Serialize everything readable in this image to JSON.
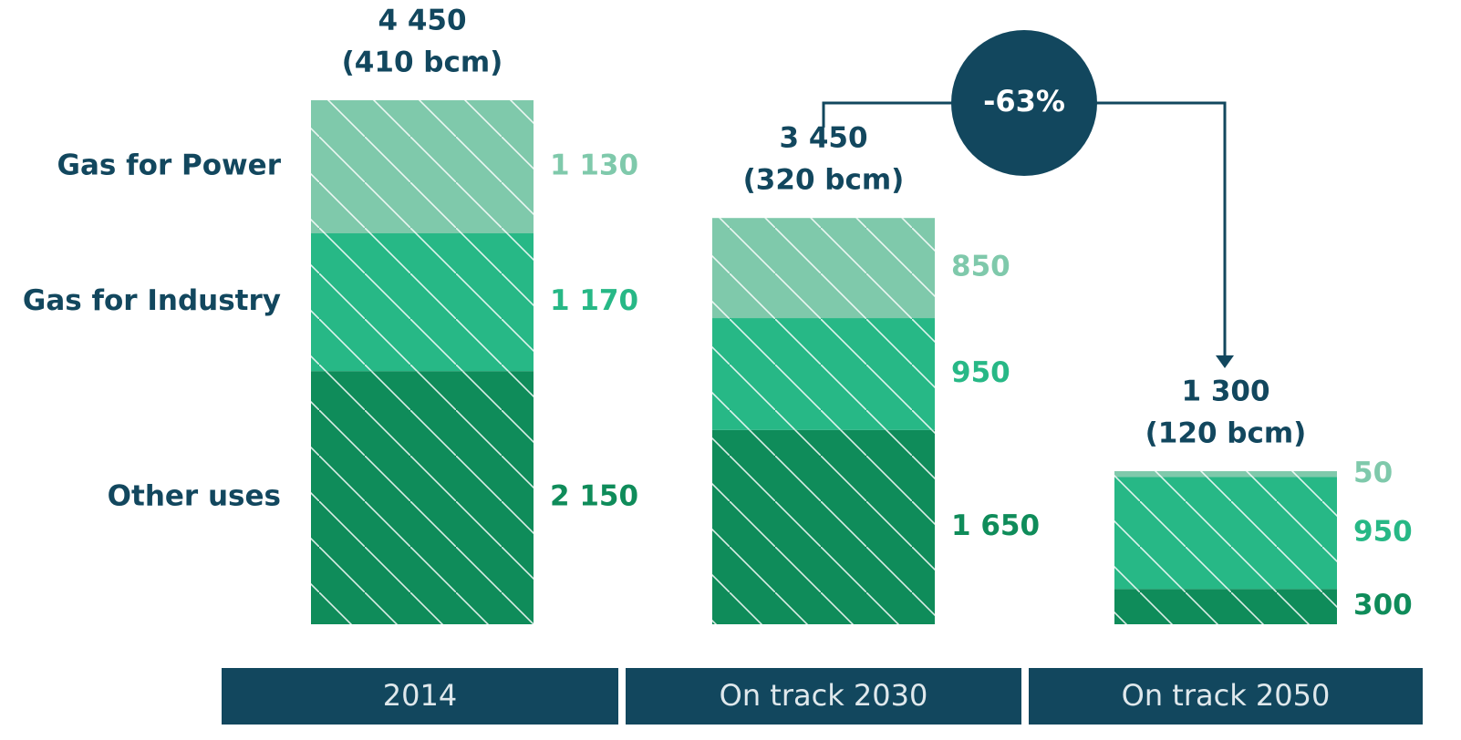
{
  "chart_data": {
    "type": "stacked_bar",
    "categories": [
      "2014",
      "On track 2030",
      "On track 2050"
    ],
    "series": [
      {
        "name": "Other uses",
        "color": "#0f8c5a",
        "label_color": "#0f8c5a",
        "values": [
          2150,
          1650,
          300
        ],
        "value_labels": [
          "2 150",
          "1 650",
          "300"
        ]
      },
      {
        "name": "Gas for Industry",
        "color": "#27b886",
        "label_color": "#27b886",
        "values": [
          1170,
          950,
          950
        ],
        "value_labels": [
          "1 170",
          "950",
          "950"
        ]
      },
      {
        "name": "Gas for Power",
        "color": "#7fc9ab",
        "label_color": "#7fc9ab",
        "values": [
          1130,
          850,
          50
        ],
        "value_labels": [
          "1 130",
          "850",
          "50"
        ]
      }
    ],
    "totals": [
      4450,
      3450,
      1300
    ],
    "total_labels": [
      "4 450",
      "3 450",
      "1 300"
    ],
    "bcm": [
      410,
      320,
      120
    ],
    "bcm_labels": [
      "(410 bcm)",
      "(320 bcm)",
      "(120 bcm)"
    ],
    "annotation": "-63%",
    "hatch": true
  }
}
